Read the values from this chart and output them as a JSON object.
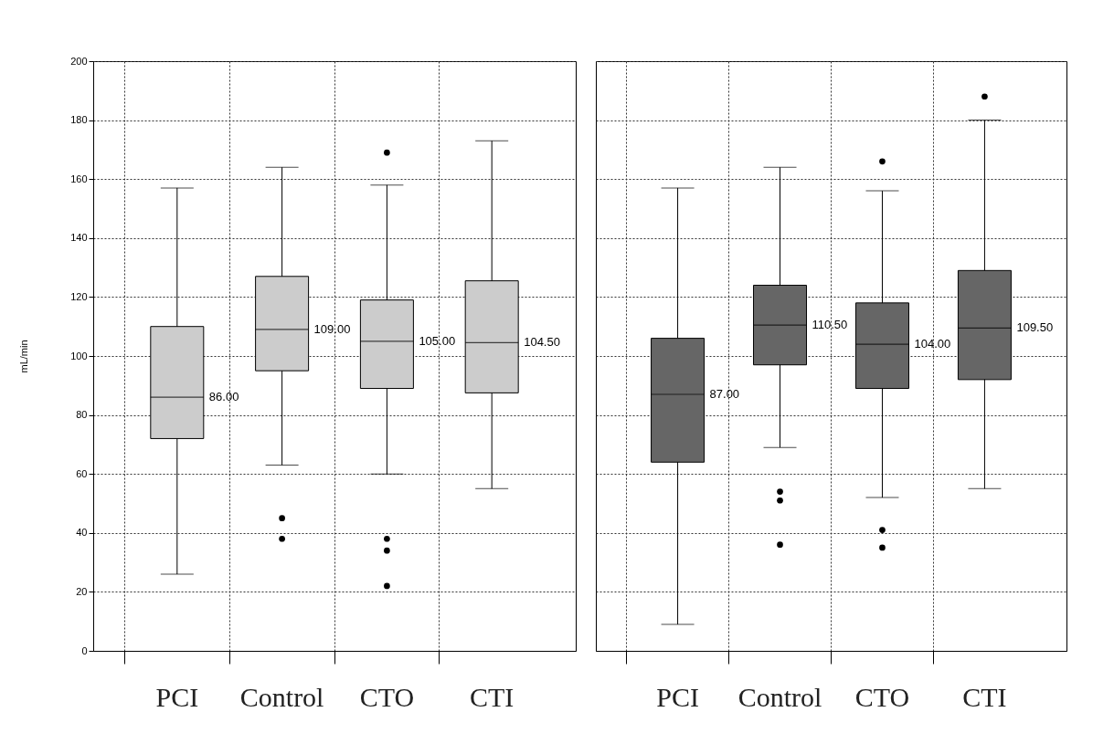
{
  "chart_data": [
    {
      "type": "box",
      "ylabel": "mL/min",
      "categories": [
        "PCI",
        "Control",
        "CTO",
        "CTI"
      ],
      "ylim": [
        0,
        200
      ],
      "yticks": [
        0,
        20,
        40,
        60,
        80,
        100,
        120,
        140,
        160,
        180,
        200
      ],
      "grid": true,
      "marker": "circle",
      "series": [
        {
          "color": "#cccccc",
          "boxes": [
            {
              "low": 26,
              "q1": 72,
              "median": 86,
              "q3": 110,
              "high": 157
            },
            {
              "low": 63,
              "q1": 95,
              "median": 109,
              "q3": 127,
              "high": 164,
              "outliers": [
                45,
                38
              ]
            },
            {
              "low": 60,
              "q1": 89,
              "median": 105,
              "q3": 119,
              "high": 158,
              "outliers": [
                169,
                38,
                34,
                22
              ]
            },
            {
              "low": 55,
              "q1": 87.5,
              "median": 104.5,
              "q3": 125.5,
              "high": 173
            }
          ]
        }
      ],
      "annotations": [
        {
          "text": "86.00",
          "x": "PCI",
          "y": 86
        },
        {
          "text": "109.00",
          "x": "Control",
          "y": 109
        },
        {
          "text": "105.00",
          "x": "CTO",
          "y": 105
        },
        {
          "text": "104.50",
          "x": "CTI",
          "y": 104.5
        }
      ]
    },
    {
      "type": "box",
      "categories": [
        "PCI",
        "Control",
        "CTO",
        "CTI"
      ],
      "ylim": [
        0,
        200
      ],
      "yticks": [
        0,
        20,
        40,
        60,
        80,
        100,
        120,
        140,
        160,
        180,
        200
      ],
      "grid": true,
      "marker": "circle",
      "tick_labels": "x",
      "series": [
        {
          "color": "#666666",
          "boxes": [
            {
              "low": 9,
              "q1": 64,
              "median": 87,
              "q3": 106,
              "high": 157
            },
            {
              "low": 69,
              "q1": 97,
              "median": 110.5,
              "q3": 124,
              "high": 164,
              "outliers": [
                54,
                51,
                36
              ]
            },
            {
              "low": 52,
              "q1": 89,
              "median": 104,
              "q3": 118,
              "high": 156,
              "outliers": [
                166,
                41,
                35
              ]
            },
            {
              "low": 55,
              "q1": 92,
              "median": 109.5,
              "q3": 129,
              "high": 180,
              "outliers": [
                188
              ]
            }
          ]
        }
      ],
      "annotations": [
        {
          "text": "87.00",
          "x": "PCI",
          "y": 87
        },
        {
          "text": "110.50",
          "x": "Control",
          "y": 110.5
        },
        {
          "text": "104.00",
          "x": "CTO",
          "y": 104
        },
        {
          "text": "109.50",
          "x": "CTI",
          "y": 109.5
        }
      ]
    }
  ]
}
